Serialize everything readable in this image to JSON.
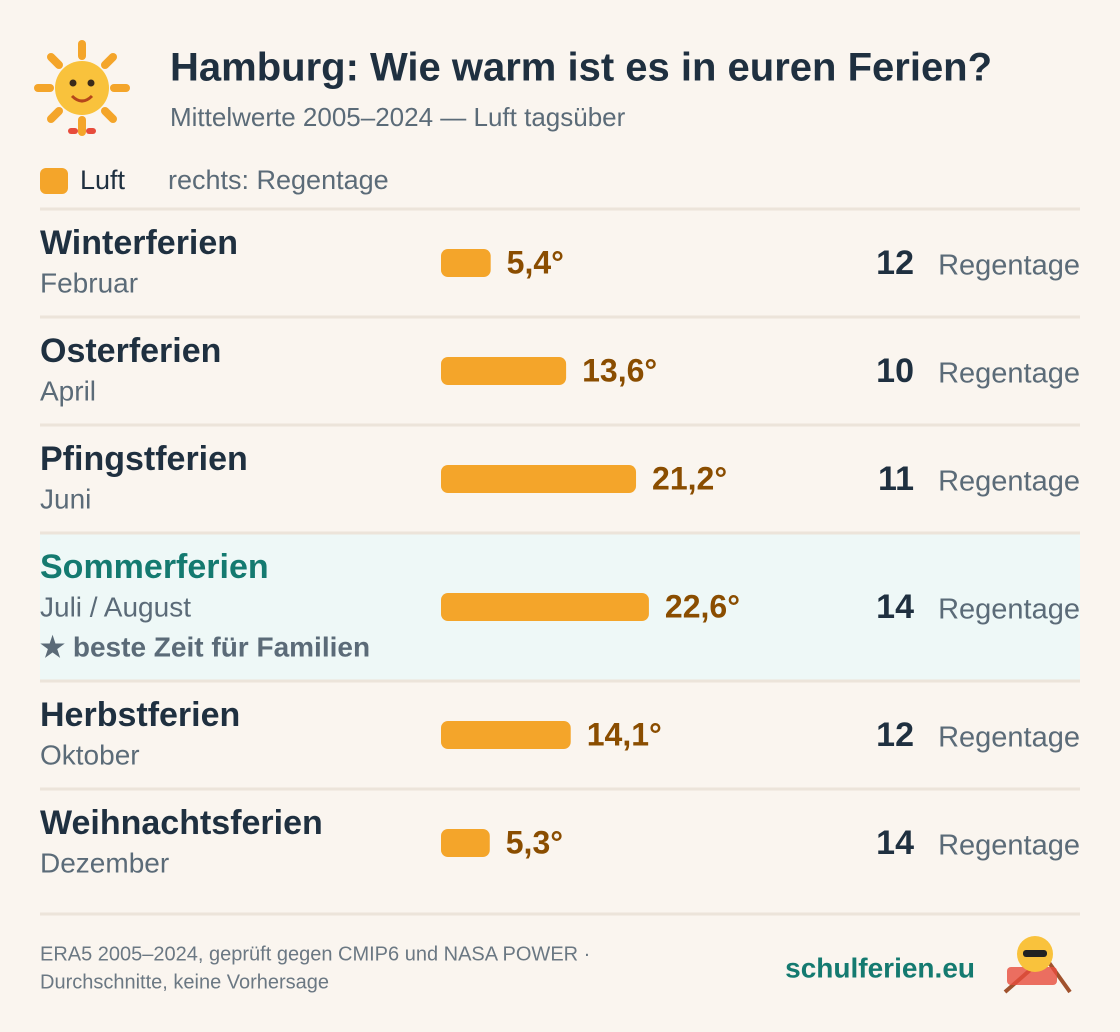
{
  "chart_data": {
    "type": "bar",
    "title": "Hamburg: Wie warm ist es in euren Ferien?",
    "subtitle": "Mittelwerte 2005–2024 — Luft tagsüber",
    "legend_note": "rechts: Regentage",
    "categories": [
      "Winterferien",
      "Osterferien",
      "Pfingstferien",
      "Sommerferien",
      "Herbstferien",
      "Weihnachtsferien"
    ],
    "months": [
      "Februar",
      "April",
      "Juni",
      "Juli / August",
      "Oktober",
      "Dezember"
    ],
    "notes": [
      null,
      null,
      null,
      "★ beste Zeit für Familien",
      null,
      null
    ],
    "series": [
      {
        "name": "Luft",
        "color": "#f4a52a",
        "values": [
          5.4,
          13.6,
          21.2,
          22.6,
          14.1,
          5.3
        ],
        "value_labels": [
          "5,4°",
          "13,6°",
          "21,2°",
          "22,6°",
          "14,1°",
          "5,3°"
        ]
      }
    ],
    "rain_days": {
      "label": "Regentage",
      "values": [
        12,
        10,
        11,
        14,
        12,
        14
      ]
    },
    "source": [
      "ERA5 2005–2024, geprüft gegen CMIP6 und NASA POWER ·",
      "Durchschnitte, keine Vorhersage"
    ],
    "brand": "schulferien.eu"
  }
}
